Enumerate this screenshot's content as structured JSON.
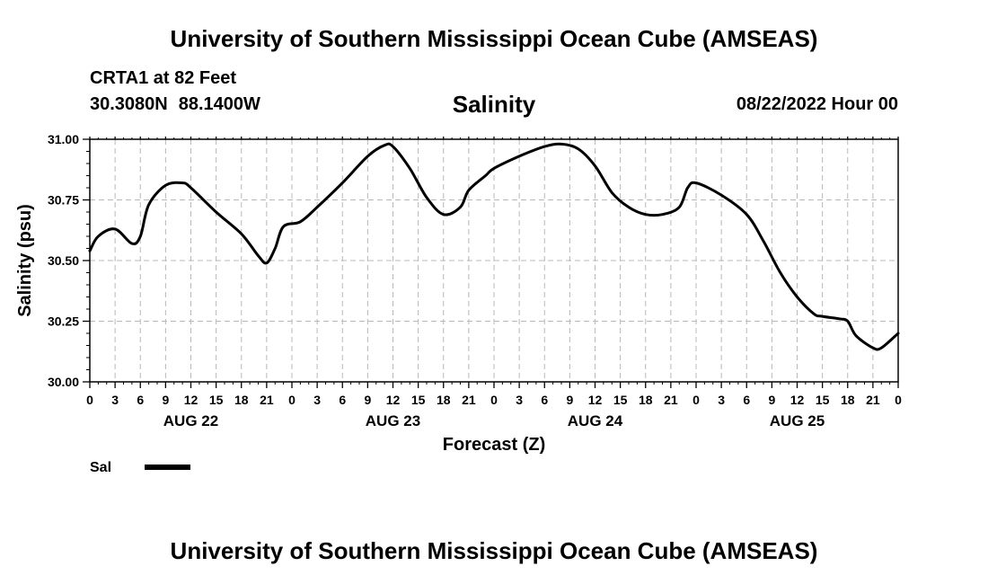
{
  "header": {
    "title": "University of Southern Mississippi Ocean Cube (AMSEAS)",
    "station": "CRTA1 at 82 Feet",
    "latitude": "30.3080N",
    "longitude": "88.1400W",
    "forecast_time": "08/22/2022 Hour 00"
  },
  "footer": {
    "title": "University of Southern Mississippi Ocean Cube (AMSEAS)"
  },
  "chart_data": {
    "type": "line",
    "title": "Salinity",
    "xlabel": "Forecast (Z)",
    "ylabel": "Salinity (psu)",
    "ylim": [
      30.0,
      31.0
    ],
    "yticks": [
      30.0,
      30.25,
      30.5,
      30.75,
      31.0
    ],
    "ytick_labels": [
      "30.00",
      "30.25",
      "30.50",
      "30.75",
      "31.00"
    ],
    "xlim": [
      0,
      96
    ],
    "xticks": [
      0,
      3,
      6,
      9,
      12,
      15,
      18,
      21,
      24,
      27,
      30,
      33,
      36,
      39,
      42,
      45,
      48,
      51,
      54,
      57,
      60,
      63,
      66,
      69,
      72,
      75,
      78,
      81,
      84,
      87,
      90,
      93,
      96
    ],
    "xtick_labels": [
      "0",
      "3",
      "6",
      "9",
      "12",
      "15",
      "18",
      "21",
      "0",
      "3",
      "6",
      "9",
      "12",
      "15",
      "18",
      "21",
      "0",
      "3",
      "6",
      "9",
      "12",
      "15",
      "18",
      "21",
      "0",
      "3",
      "6",
      "9",
      "12",
      "15",
      "18",
      "21",
      "0"
    ],
    "day_labels": [
      {
        "hour": 12,
        "label": "AUG 22"
      },
      {
        "hour": 36,
        "label": "AUG 23"
      },
      {
        "hour": 60,
        "label": "AUG 24"
      },
      {
        "hour": 84,
        "label": "AUG 25"
      }
    ],
    "grid": true,
    "legend": {
      "position": "bottom-left",
      "entries": [
        {
          "name": "Sal"
        }
      ]
    },
    "series": [
      {
        "name": "Sal",
        "x": [
          0,
          1,
          3,
          5,
          6,
          7,
          9,
          11,
          12,
          15,
          18,
          20,
          21,
          22,
          23,
          25,
          27,
          30,
          33,
          35,
          36,
          38,
          40,
          42,
          44,
          45,
          47,
          48,
          51,
          54,
          56,
          58,
          60,
          62,
          64,
          66,
          68,
          70,
          71,
          72,
          75,
          78,
          80,
          82,
          84,
          86,
          87,
          89,
          90,
          91,
          93,
          94,
          96
        ],
        "values": [
          30.54,
          30.6,
          30.63,
          30.57,
          30.6,
          30.73,
          30.81,
          30.82,
          30.8,
          30.7,
          30.61,
          30.52,
          30.49,
          30.55,
          30.64,
          30.66,
          30.72,
          30.82,
          30.93,
          30.975,
          30.97,
          30.88,
          30.76,
          30.69,
          30.72,
          30.79,
          30.85,
          30.88,
          30.93,
          30.97,
          30.98,
          30.96,
          30.89,
          30.78,
          30.72,
          30.69,
          30.69,
          30.72,
          30.8,
          30.82,
          30.77,
          30.69,
          30.58,
          30.45,
          30.35,
          30.28,
          30.27,
          30.26,
          30.25,
          30.19,
          30.14,
          30.14,
          30.2
        ]
      }
    ]
  }
}
